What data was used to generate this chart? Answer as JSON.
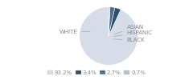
{
  "labels": [
    "WHITE",
    "ASIAN",
    "HISPANIC",
    "BLACK"
  ],
  "values": [
    93.2,
    3.4,
    2.7,
    0.7
  ],
  "colors": [
    "#d6dde8",
    "#2d4e6e",
    "#4a7096",
    "#b0bfcc"
  ],
  "legend_colors": [
    "#d6dde8",
    "#2d4e6e",
    "#4a7096",
    "#b0bfcc"
  ],
  "legend_labels": [
    "93.2%",
    "3.4%",
    "2.7%",
    "0.7%"
  ],
  "startangle": 90,
  "bg_color": "#ffffff",
  "text_color": "#888888",
  "line_color": "#aaaaaa"
}
